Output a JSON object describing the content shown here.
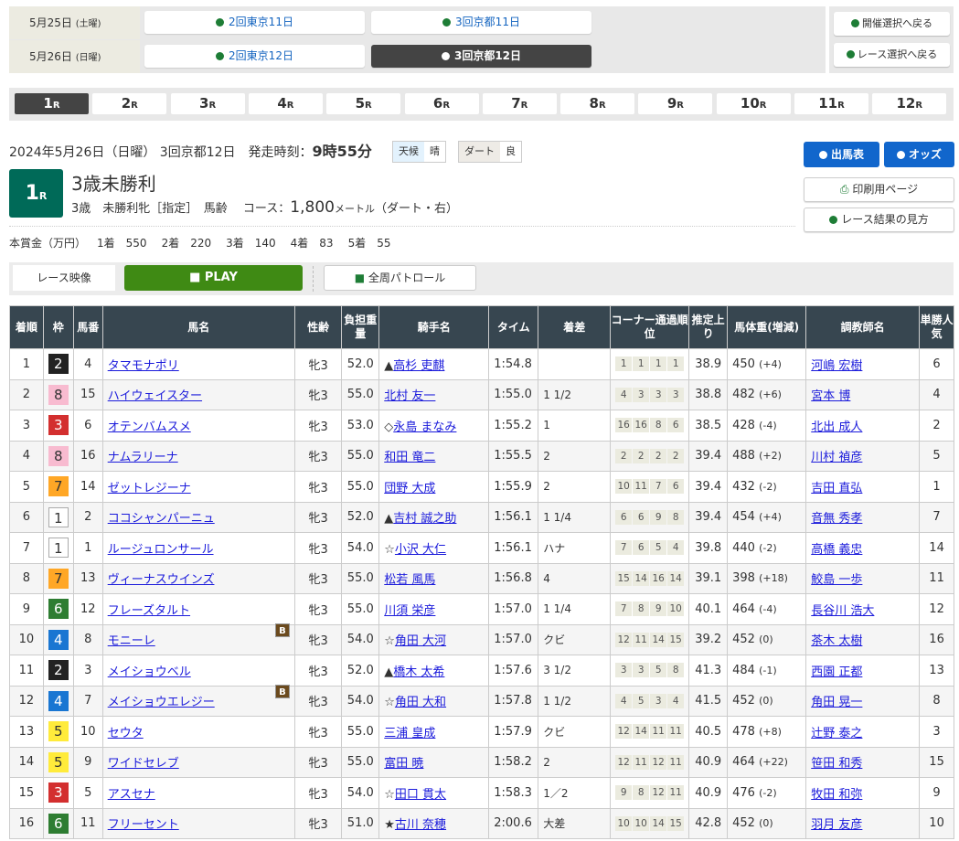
{
  "days": [
    {
      "date": "5月25日",
      "dow": "(土曜)",
      "meetings": [
        "2回東京11日",
        "3回京都11日"
      ],
      "active": -1
    },
    {
      "date": "5月26日",
      "dow": "(日曜)",
      "meetings": [
        "2回東京12日",
        "3回京都12日"
      ],
      "active": 1
    }
  ],
  "back_buttons": [
    "開催選択へ戻る",
    "レース選択へ戻る"
  ],
  "race_tabs": [
    "1",
    "2",
    "3",
    "4",
    "5",
    "6",
    "7",
    "8",
    "9",
    "10",
    "11",
    "12"
  ],
  "race_tab_suffix": "R",
  "active_race_tab": 0,
  "race": {
    "date_line": "2024年5月26日（日曜） 3回京都12日",
    "start_label": "発走時刻：",
    "start_time": "9時55分",
    "weather_label": "天候",
    "weather": "晴",
    "track_label": "ダート",
    "track_cond": "良",
    "number": "1",
    "number_suffix": "R",
    "title": "3歳未勝利",
    "conditions": "3歳　未勝利牝［指定］　馬齢",
    "course_label": "コース：",
    "distance": "1,800",
    "distance_unit": "メートル",
    "course_detail": "（ダート・右）",
    "prize_label": "本賞金（万円）",
    "prizes": [
      {
        "place": "1着",
        "amount": "550"
      },
      {
        "place": "2着",
        "amount": "220"
      },
      {
        "place": "3着",
        "amount": "140"
      },
      {
        "place": "4着",
        "amount": "83"
      },
      {
        "place": "5着",
        "amount": "55"
      }
    ]
  },
  "side_buttons": {
    "entries": "出馬表",
    "odds": "オッズ",
    "print": "印刷用ページ",
    "howto": "レース結果の見方"
  },
  "video": {
    "label": "レース映像",
    "play": "PLAY",
    "patrol": "全周パトロール"
  },
  "colors": {
    "accent_green": "#006a58",
    "button_blue": "#1166cc",
    "play_green": "#3f8a14",
    "header_dark": "#374650"
  },
  "waku_colors": {
    "1": [
      "#ffffff",
      "#333"
    ],
    "2": [
      "#222222",
      "#fff"
    ],
    "3": [
      "#d32f2f",
      "#fff"
    ],
    "4": [
      "#1976d2",
      "#fff"
    ],
    "5": [
      "#ffeb3b",
      "#333"
    ],
    "6": [
      "#2e7d32",
      "#fff"
    ],
    "7": [
      "#ffa726",
      "#333"
    ],
    "8": [
      "#f8bbd0",
      "#333"
    ]
  },
  "table": {
    "headers": [
      "着順",
      "枠",
      "馬番",
      "馬名",
      "性齢",
      "負担重量",
      "騎手名",
      "タイム",
      "着差",
      "コーナー通過順位",
      "推定上り",
      "馬体重(増減)",
      "調教師名",
      "単勝人気"
    ],
    "blinker_label": "B",
    "rows": [
      {
        "place": "1",
        "waku": "2",
        "num": "4",
        "horse": "タマモナポリ",
        "blinker": false,
        "sexage": "牝3",
        "weight": "52.0",
        "mark": "▲",
        "jockey": "高杉 吏麒",
        "time": "1:54.8",
        "margin": "",
        "corners": [
          "1",
          "1",
          "1",
          "1"
        ],
        "last3f": "38.9",
        "body": "450",
        "diff": "(+4)",
        "trainer": "河嶋 宏樹",
        "pop": "6"
      },
      {
        "place": "2",
        "waku": "8",
        "num": "15",
        "horse": "ハイウェイスター",
        "blinker": false,
        "sexage": "牝3",
        "weight": "55.0",
        "mark": "",
        "jockey": "北村 友一",
        "time": "1:55.0",
        "margin": "1 1/2",
        "corners": [
          "4",
          "3",
          "3",
          "3"
        ],
        "last3f": "38.8",
        "body": "482",
        "diff": "(+6)",
        "trainer": "宮本 博",
        "pop": "4"
      },
      {
        "place": "3",
        "waku": "3",
        "num": "6",
        "horse": "オテンバムスメ",
        "blinker": false,
        "sexage": "牝3",
        "weight": "53.0",
        "mark": "◇",
        "jockey": "永島 まなみ",
        "time": "1:55.2",
        "margin": "1",
        "corners": [
          "16",
          "16",
          "8",
          "6"
        ],
        "last3f": "38.5",
        "body": "428",
        "diff": "(-4)",
        "trainer": "北出 成人",
        "pop": "2"
      },
      {
        "place": "4",
        "waku": "8",
        "num": "16",
        "horse": "ナムラリーナ",
        "blinker": false,
        "sexage": "牝3",
        "weight": "55.0",
        "mark": "",
        "jockey": "和田 竜二",
        "time": "1:55.5",
        "margin": "2",
        "corners": [
          "2",
          "2",
          "2",
          "2"
        ],
        "last3f": "39.4",
        "body": "488",
        "diff": "(+2)",
        "trainer": "川村 禎彦",
        "pop": "5"
      },
      {
        "place": "5",
        "waku": "7",
        "num": "14",
        "horse": "ゼットレジーナ",
        "blinker": false,
        "sexage": "牝3",
        "weight": "55.0",
        "mark": "",
        "jockey": "団野 大成",
        "time": "1:55.9",
        "margin": "2",
        "corners": [
          "10",
          "11",
          "7",
          "6"
        ],
        "last3f": "39.4",
        "body": "432",
        "diff": "(-2)",
        "trainer": "吉田 直弘",
        "pop": "1"
      },
      {
        "place": "6",
        "waku": "1",
        "num": "2",
        "horse": "ココシャンパーニュ",
        "blinker": false,
        "sexage": "牝3",
        "weight": "52.0",
        "mark": "▲",
        "jockey": "吉村 誠之助",
        "time": "1:56.1",
        "margin": "1 1/4",
        "corners": [
          "6",
          "6",
          "9",
          "8"
        ],
        "last3f": "39.4",
        "body": "454",
        "diff": "(+4)",
        "trainer": "音無 秀孝",
        "pop": "7"
      },
      {
        "place": "7",
        "waku": "1",
        "num": "1",
        "horse": "ルージュロンサール",
        "blinker": false,
        "sexage": "牝3",
        "weight": "54.0",
        "mark": "☆",
        "jockey": "小沢 大仁",
        "time": "1:56.1",
        "margin": "ハナ",
        "corners": [
          "7",
          "6",
          "5",
          "4"
        ],
        "last3f": "39.8",
        "body": "440",
        "diff": "(-2)",
        "trainer": "高橋 義忠",
        "pop": "14"
      },
      {
        "place": "8",
        "waku": "7",
        "num": "13",
        "horse": "ヴィーナスウインズ",
        "blinker": false,
        "sexage": "牝3",
        "weight": "55.0",
        "mark": "",
        "jockey": "松若 風馬",
        "time": "1:56.8",
        "margin": "4",
        "corners": [
          "15",
          "14",
          "16",
          "14"
        ],
        "last3f": "39.1",
        "body": "398",
        "diff": "(+18)",
        "trainer": "鮫島 一歩",
        "pop": "11"
      },
      {
        "place": "9",
        "waku": "6",
        "num": "12",
        "horse": "フレーズタルト",
        "blinker": false,
        "sexage": "牝3",
        "weight": "55.0",
        "mark": "",
        "jockey": "川須 栄彦",
        "time": "1:57.0",
        "margin": "1 1/4",
        "corners": [
          "7",
          "8",
          "9",
          "10"
        ],
        "last3f": "40.1",
        "body": "464",
        "diff": "(-4)",
        "trainer": "長谷川 浩大",
        "pop": "12"
      },
      {
        "place": "10",
        "waku": "4",
        "num": "8",
        "horse": "モニーレ",
        "blinker": true,
        "sexage": "牝3",
        "weight": "54.0",
        "mark": "☆",
        "jockey": "角田 大河",
        "time": "1:57.0",
        "margin": "クビ",
        "corners": [
          "12",
          "11",
          "14",
          "15"
        ],
        "last3f": "39.2",
        "body": "452",
        "diff": "(0)",
        "trainer": "茶木 太樹",
        "pop": "16"
      },
      {
        "place": "11",
        "waku": "2",
        "num": "3",
        "horse": "メイショウベル",
        "blinker": false,
        "sexage": "牝3",
        "weight": "52.0",
        "mark": "▲",
        "jockey": "橋木 太希",
        "time": "1:57.6",
        "margin": "3 1/2",
        "corners": [
          "3",
          "3",
          "5",
          "8"
        ],
        "last3f": "41.3",
        "body": "484",
        "diff": "(-1)",
        "trainer": "西園 正都",
        "pop": "13"
      },
      {
        "place": "12",
        "waku": "4",
        "num": "7",
        "horse": "メイショウエレジー",
        "blinker": true,
        "sexage": "牝3",
        "weight": "54.0",
        "mark": "☆",
        "jockey": "角田 大和",
        "time": "1:57.8",
        "margin": "1 1/2",
        "corners": [
          "4",
          "5",
          "3",
          "4"
        ],
        "last3f": "41.5",
        "body": "452",
        "diff": "(0)",
        "trainer": "角田 晃一",
        "pop": "8"
      },
      {
        "place": "13",
        "waku": "5",
        "num": "10",
        "horse": "セウタ",
        "blinker": false,
        "sexage": "牝3",
        "weight": "55.0",
        "mark": "",
        "jockey": "三浦 皇成",
        "time": "1:57.9",
        "margin": "クビ",
        "corners": [
          "12",
          "14",
          "11",
          "11"
        ],
        "last3f": "40.5",
        "body": "478",
        "diff": "(+8)",
        "trainer": "辻野 泰之",
        "pop": "3"
      },
      {
        "place": "14",
        "waku": "5",
        "num": "9",
        "horse": "ワイドセレブ",
        "blinker": false,
        "sexage": "牝3",
        "weight": "55.0",
        "mark": "",
        "jockey": "富田 暁",
        "time": "1:58.2",
        "margin": "2",
        "corners": [
          "12",
          "11",
          "12",
          "11"
        ],
        "last3f": "40.9",
        "body": "464",
        "diff": "(+22)",
        "trainer": "笹田 和秀",
        "pop": "15"
      },
      {
        "place": "15",
        "waku": "3",
        "num": "5",
        "horse": "アスセナ",
        "blinker": false,
        "sexage": "牝3",
        "weight": "54.0",
        "mark": "☆",
        "jockey": "田口 貫太",
        "time": "1:58.3",
        "margin": "1／2",
        "corners": [
          "9",
          "8",
          "12",
          "11"
        ],
        "last3f": "40.9",
        "body": "476",
        "diff": "(-2)",
        "trainer": "牧田 和弥",
        "pop": "9"
      },
      {
        "place": "16",
        "waku": "6",
        "num": "11",
        "horse": "フリーセント",
        "blinker": false,
        "sexage": "牝3",
        "weight": "51.0",
        "mark": "★",
        "jockey": "古川 奈穂",
        "time": "2:00.6",
        "margin": "大差",
        "corners": [
          "10",
          "10",
          "14",
          "15"
        ],
        "last3f": "42.8",
        "body": "452",
        "diff": "(0)",
        "trainer": "羽月 友彦",
        "pop": "10"
      }
    ]
  }
}
